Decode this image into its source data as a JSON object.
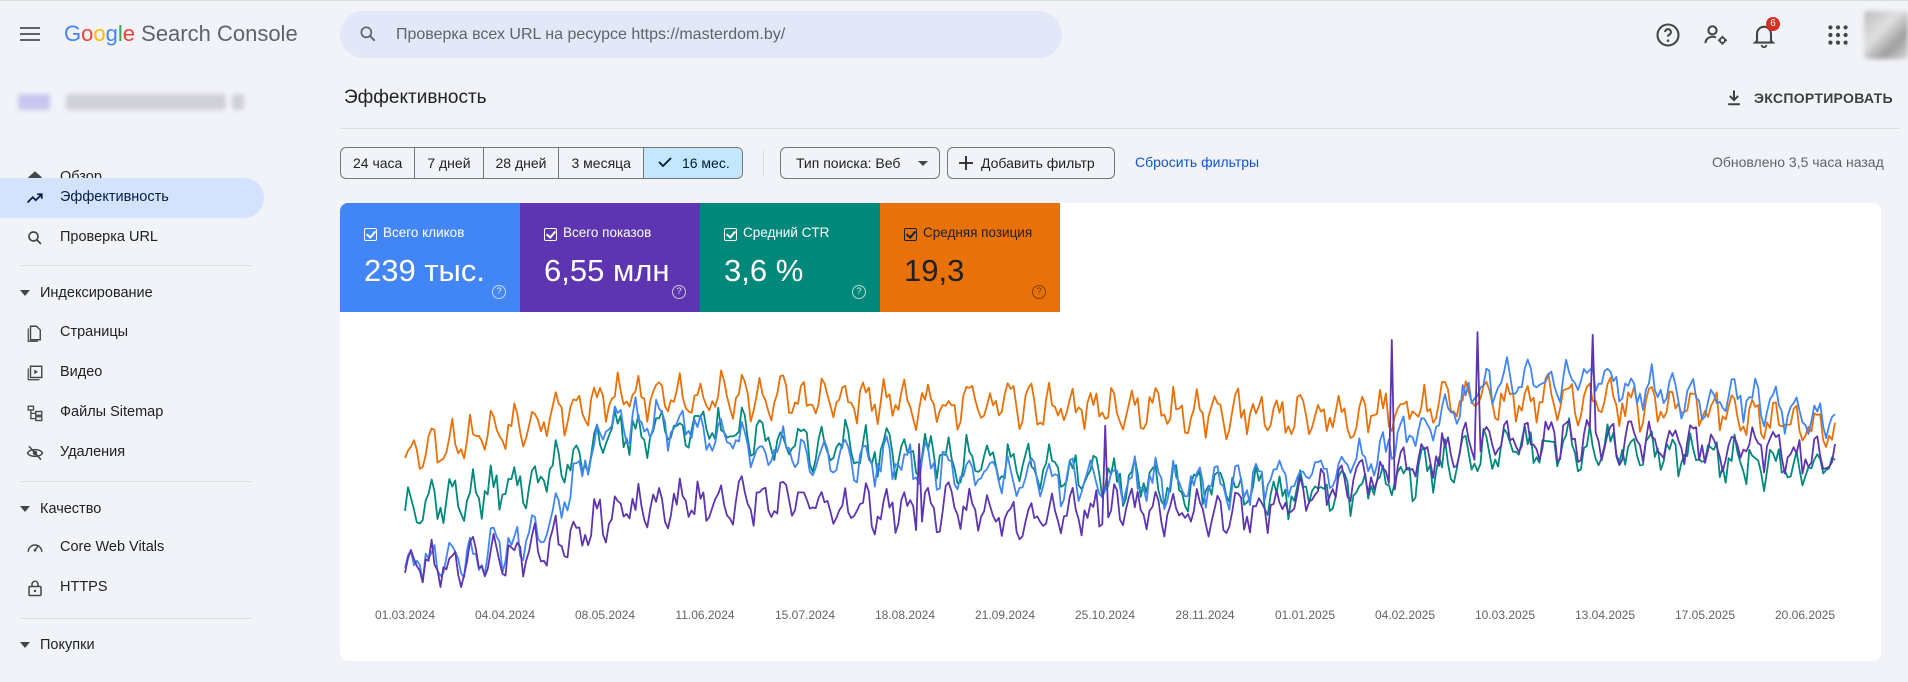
{
  "header": {
    "logo_google": [
      "G",
      "o",
      "o",
      "g",
      "l",
      "e"
    ],
    "logo_product": "Search Console",
    "search_placeholder": "Проверка всех URL на ресурсе https://masterdom.by/",
    "notifications_count": "6"
  },
  "sidebar": {
    "items": [
      {
        "label": "Обзор",
        "icon": "home-icon"
      },
      {
        "label": "Эффективность",
        "icon": "trending-up-icon",
        "active": true
      },
      {
        "label": "Проверка URL",
        "icon": "search-icon"
      }
    ],
    "groups": [
      {
        "label": "Индексирование",
        "items": [
          {
            "label": "Страницы",
            "icon": "pages-icon"
          },
          {
            "label": "Видео",
            "icon": "video-icon"
          },
          {
            "label": "Файлы Sitemap",
            "icon": "sitemap-icon"
          },
          {
            "label": "Удаления",
            "icon": "removals-icon"
          }
        ]
      },
      {
        "label": "Качество",
        "items": [
          {
            "label": "Core Web Vitals",
            "icon": "speed-icon"
          },
          {
            "label": "HTTPS",
            "icon": "lock-icon"
          }
        ]
      },
      {
        "label": "Покупки",
        "items": []
      }
    ]
  },
  "main": {
    "title": "Эффективность",
    "export_label": "ЭКСПОРТИРОВАТЬ",
    "date_ranges": [
      "24 часа",
      "7 дней",
      "28 дней",
      "3 месяца",
      "16 мес."
    ],
    "selected_range": "16 мес.",
    "search_type": "Тип поиска: Веб",
    "add_filter": "Добавить фильтр",
    "reset_filters": "Сбросить фильтры",
    "updated": "Обновлено 3,5 часа назад"
  },
  "metrics": [
    {
      "label": "Всего кликов",
      "value": "239 тыс.",
      "color": "#4285f4",
      "checked": true
    },
    {
      "label": "Всего показов",
      "value": "6,55 млн",
      "color": "#5e35b1",
      "checked": true
    },
    {
      "label": "Средний CTR",
      "value": "3,6 %",
      "color": "#00897b",
      "checked": true
    },
    {
      "label": "Средняя позиция",
      "value": "19,3",
      "color": "#e8710a",
      "checked": true
    }
  ],
  "chart_data": {
    "type": "line",
    "x_tick_labels": [
      "01.03.2024",
      "04.04.2024",
      "08.05.2024",
      "11.06.2024",
      "15.07.2024",
      "18.08.2024",
      "21.09.2024",
      "25.10.2024",
      "28.11.2024",
      "01.01.2025",
      "04.02.2025",
      "10.03.2025",
      "13.04.2025",
      "17.05.2025",
      "20.06.2025"
    ],
    "x_range": [
      "2024-03-01",
      "2025-06-30"
    ],
    "y_axis_labels_shown": false,
    "legend": "metric tiles above chart",
    "series": [
      {
        "name": "Всего кликов",
        "color": "#4285f4",
        "trend": [
          0.1,
          0.12,
          0.2,
          0.65,
          0.62,
          0.55,
          0.5,
          0.48,
          0.47,
          0.42,
          0.4,
          0.4,
          0.38,
          0.42,
          0.48,
          0.62,
          0.78,
          0.8,
          0.78,
          0.74,
          0.7,
          0.62
        ],
        "noise": 0.1,
        "seed": 11
      },
      {
        "name": "Всего показов",
        "color": "#5e35b1",
        "trend": [
          0.08,
          0.1,
          0.15,
          0.28,
          0.32,
          0.33,
          0.32,
          0.3,
          0.3,
          0.28,
          0.3,
          0.3,
          0.28,
          0.32,
          0.42,
          0.5,
          0.56,
          0.58,
          0.57,
          0.55,
          0.54,
          0.46
        ],
        "noise": 0.1,
        "seed": 23,
        "spikes": [
          [
            0.69,
            0.95
          ],
          [
            0.75,
            0.98
          ],
          [
            0.83,
            0.97
          ],
          [
            0.49,
            0.62
          ],
          [
            0.36,
            0.55
          ]
        ]
      },
      {
        "name": "Средний CTR",
        "color": "#00897b",
        "trend": [
          0.32,
          0.35,
          0.42,
          0.58,
          0.62,
          0.58,
          0.55,
          0.52,
          0.5,
          0.46,
          0.44,
          0.4,
          0.38,
          0.36,
          0.38,
          0.45,
          0.52,
          0.54,
          0.52,
          0.5,
          0.48,
          0.46
        ],
        "noise": 0.11,
        "seed": 37
      },
      {
        "name": "Средняя позиция",
        "color": "#e8710a",
        "trend": [
          0.52,
          0.58,
          0.66,
          0.72,
          0.74,
          0.73,
          0.72,
          0.71,
          0.7,
          0.7,
          0.69,
          0.68,
          0.67,
          0.66,
          0.66,
          0.7,
          0.72,
          0.72,
          0.7,
          0.68,
          0.66,
          0.58
        ],
        "noise": 0.1,
        "seed": 53
      }
    ]
  }
}
